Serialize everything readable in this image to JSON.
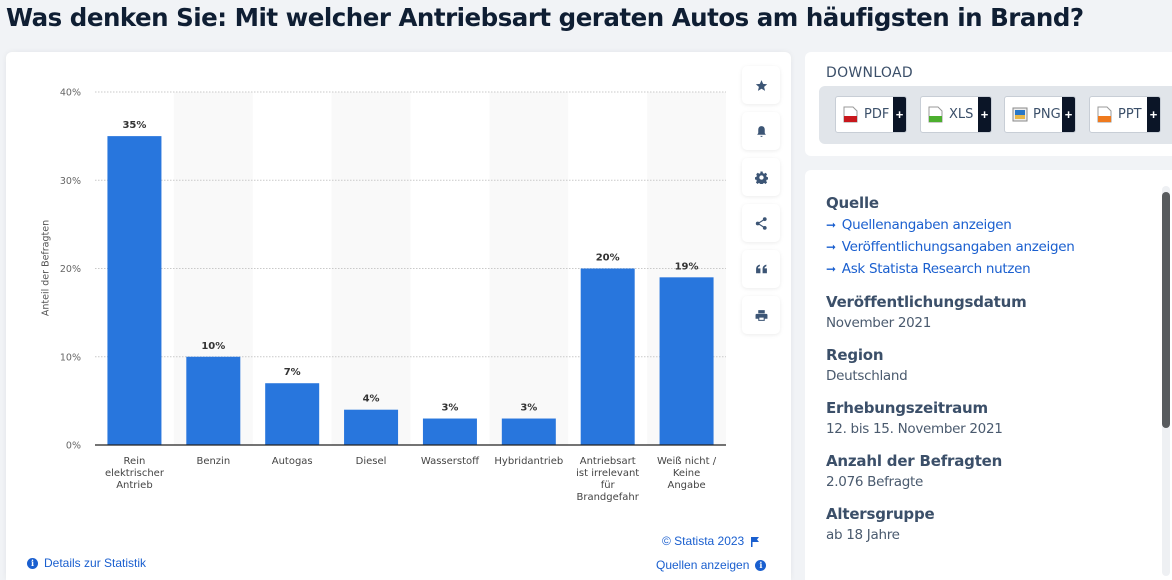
{
  "page_title": "Was denken Sie: Mit welcher Antriebsart geraten Autos am häufigsten in Brand?",
  "toolbar": {
    "buttons": [
      {
        "name": "favorite",
        "icon": "star-icon"
      },
      {
        "name": "notify",
        "icon": "bell-icon"
      },
      {
        "name": "settings",
        "icon": "gear-icon"
      },
      {
        "name": "share",
        "icon": "share-icon"
      },
      {
        "name": "cite",
        "icon": "quote-icon"
      },
      {
        "name": "print",
        "icon": "printer-icon"
      }
    ]
  },
  "chart_footer": {
    "details_link": "Details zur Statistik",
    "copyright": "© Statista 2023",
    "sources_link": "Quellen anzeigen"
  },
  "download": {
    "title": "DOWNLOAD",
    "formats": [
      {
        "label": "PDF",
        "color": "#c8171c"
      },
      {
        "label": "XLS",
        "color": "#4caf2e"
      },
      {
        "label": "PNG",
        "color": "#2a78c8"
      },
      {
        "label": "PPT",
        "color": "#ef7a1e"
      }
    ],
    "plus": "+"
  },
  "info": {
    "source_title": "Quelle",
    "source_links": [
      "Quellenangaben anzeigen",
      "Veröffentlichungsangaben anzeigen",
      "Ask Statista Research nutzen"
    ],
    "sections": [
      {
        "title": "Veröffentlichungsdatum",
        "value": "November 2021"
      },
      {
        "title": "Region",
        "value": "Deutschland"
      },
      {
        "title": "Erhebungszeitraum",
        "value": "12. bis 15. November 2021"
      },
      {
        "title": "Anzahl der Befragten",
        "value": "2.076 Befragte"
      },
      {
        "title": "Altersgruppe",
        "value": "ab 18 Jahre"
      }
    ]
  },
  "colors": {
    "bar": "#2876dd",
    "link": "#1a5fcf",
    "title": "#0f1e33"
  },
  "chart_data": {
    "type": "bar",
    "title": "Was denken Sie: Mit welcher Antriebsart geraten Autos am häufigsten in Brand?",
    "xlabel": "",
    "ylabel": "Anteil der Befragten",
    "categories": [
      [
        "Rein",
        "elektrischer",
        "Antrieb"
      ],
      [
        "Benzin"
      ],
      [
        "Autogas"
      ],
      [
        "Diesel"
      ],
      [
        "Wasserstoff"
      ],
      [
        "Hybridantrieb"
      ],
      [
        "Antriebsart",
        "ist irrelevant",
        "für",
        "Brandgefahr"
      ],
      [
        "Weiß nicht /",
        "Keine",
        "Angabe"
      ]
    ],
    "values": [
      35,
      10,
      7,
      4,
      3,
      3,
      20,
      19
    ],
    "value_labels": [
      "35%",
      "10%",
      "7%",
      "4%",
      "3%",
      "3%",
      "20%",
      "19%"
    ],
    "ylim": [
      0,
      40
    ],
    "yticks": [
      0,
      10,
      20,
      30,
      40
    ],
    "ytick_labels": [
      "0%",
      "10%",
      "20%",
      "30%",
      "40%"
    ],
    "grid": true,
    "legend": "none"
  }
}
